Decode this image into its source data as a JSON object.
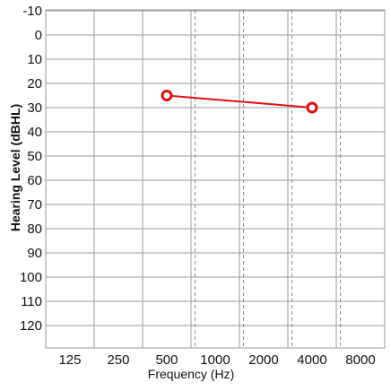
{
  "chart_data": {
    "type": "line",
    "xlabel": "Frequency (Hz)",
    "ylabel": "Hearing Level (dBHL)",
    "x_scale": "log2",
    "x_ticks": [
      125,
      250,
      500,
      1000,
      2000,
      4000,
      8000
    ],
    "x_tick_labels": [
      "125",
      "250",
      "500",
      "1000",
      "2000",
      "4000",
      "8000"
    ],
    "x_dashed_gridlines": [
      750,
      1500,
      3000,
      6000
    ],
    "y_ticks": [
      -10,
      0,
      10,
      20,
      30,
      40,
      50,
      60,
      70,
      80,
      90,
      100,
      110,
      120
    ],
    "ylim": [
      -10,
      120
    ],
    "y_inverted": true,
    "grid": true,
    "series": [
      {
        "marker": "circle-open",
        "color": "#e01010",
        "points": [
          {
            "x": 500,
            "y": 25
          },
          {
            "x": 4000,
            "y": 30
          }
        ]
      }
    ]
  }
}
